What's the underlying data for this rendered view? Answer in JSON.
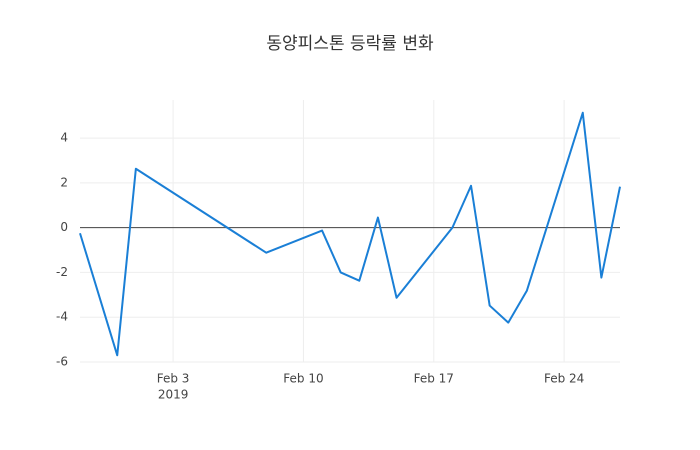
{
  "chart_data": {
    "type": "line",
    "title": "동양피스톤 등락률 변화",
    "x": [
      "2019-01-29",
      "2019-01-31",
      "2019-02-01",
      "2019-02-08",
      "2019-02-11",
      "2019-02-12",
      "2019-02-13",
      "2019-02-14",
      "2019-02-15",
      "2019-02-18",
      "2019-02-19",
      "2019-02-20",
      "2019-02-21",
      "2019-02-22",
      "2019-02-25",
      "2019-02-26",
      "2019-02-27"
    ],
    "series": [
      {
        "color": "#1a7fd6",
        "values": [
          -0.25,
          -5.7,
          2.63,
          -1.12,
          -0.13,
          -2.0,
          -2.37,
          0.45,
          -3.13,
          0,
          1.87,
          -3.48,
          -4.24,
          -2.81,
          5.13,
          -2.23,
          1.83
        ]
      }
    ],
    "xlim": [
      "2019-01-29",
      "2019-02-27"
    ],
    "xticks": [
      {
        "value": "2019-02-03",
        "label": "Feb 3"
      },
      {
        "value": "2019-02-10",
        "label": "Feb 10"
      },
      {
        "value": "2019-02-17",
        "label": "Feb 17"
      },
      {
        "value": "2019-02-24",
        "label": "Feb 24"
      }
    ],
    "x_year": "2019",
    "ylim": [
      -6,
      5.7
    ],
    "yticks": [
      -6,
      -4,
      -2,
      0,
      2,
      4
    ],
    "grid": true,
    "zeroline": true
  }
}
